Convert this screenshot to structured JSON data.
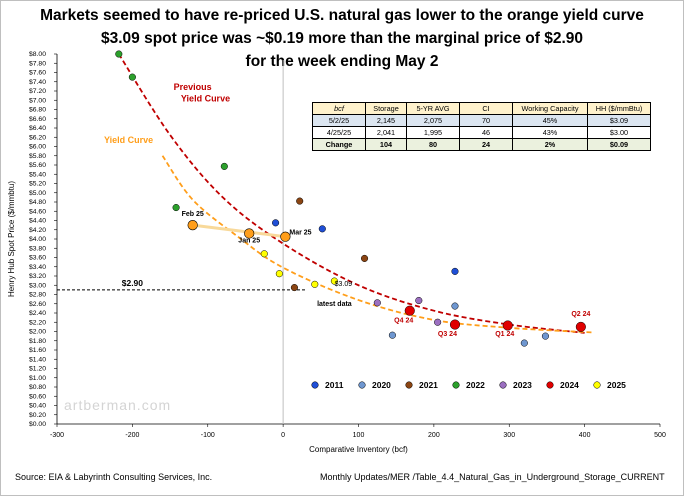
{
  "title_lines": [
    "Markets seemed to have re-priced U.S. natural gas lower to the orange yield curve",
    "$3.09 spot price was ~$0.19 more than the marginal price of $2.90",
    "for the week ending May 2"
  ],
  "table": {
    "headers": [
      "bcf",
      "Storage",
      "5-YR AVG",
      "CI",
      "Working Capacity",
      "HH ($/mmBtu)"
    ],
    "rows": [
      [
        "5/2/25",
        "2,145",
        "2,075",
        "70",
        "45%",
        "$3.09"
      ],
      [
        "4/25/25",
        "2,041",
        "1,995",
        "46",
        "43%",
        "$3.00"
      ],
      [
        "Change",
        "104",
        "80",
        "24",
        "2%",
        "$0.09"
      ]
    ]
  },
  "footer_left": "Source: EIA & Labyrinth Consulting Services, Inc.",
  "footer_right": "Monthly Updates/MER /Table_4.4_Natural_Gas_in_Underground_Storage_CURRENT",
  "watermark": "artberman.com",
  "colors": {
    "y2011": "#1f4fd6",
    "y2020": "#6f97d0",
    "y2021": "#8b4513",
    "y2022": "#2ca02c",
    "y2023": "#9b6fc0",
    "y2024": "#e00000",
    "y2025": "#ffff00",
    "prev_curve": "#c00000",
    "yield_curve": "#ff9e1a"
  },
  "chart_data": {
    "type": "scatter",
    "xlabel": "Comparative Inventory (bcf)",
    "ylabel": "Henry Hub Spot Price ($/mmbtu)",
    "xlim": [
      -300,
      500
    ],
    "ylim": [
      0,
      8
    ],
    "x_ticks": [
      "-300",
      "-200",
      "-100",
      "0",
      "100",
      "200",
      "300",
      "400",
      "500"
    ],
    "y_ticks": [
      "$0.00",
      "$0.20",
      "$0.40",
      "$0.60",
      "$0.80",
      "$1.00",
      "$1.20",
      "$1.40",
      "$1.60",
      "$1.80",
      "$2.00",
      "$2.20",
      "$2.40",
      "$2.60",
      "$2.80",
      "$3.00",
      "$3.20",
      "$3.40",
      "$3.60",
      "$3.80",
      "$4.00",
      "$4.20",
      "$4.40",
      "$4.60",
      "$4.80",
      "$5.00",
      "$5.20",
      "$5.40",
      "$5.60",
      "$5.80",
      "$6.00",
      "$6.20",
      "$6.40",
      "$6.60",
      "$6.80",
      "$7.00",
      "$7.20",
      "$7.40",
      "$7.60",
      "$7.80",
      "$8.00"
    ],
    "series": [
      {
        "name": "2011",
        "color": "#1f4fd6",
        "points": [
          [
            -10,
            4.35
          ],
          [
            52,
            4.22
          ],
          [
            228,
            3.3
          ]
        ]
      },
      {
        "name": "2020",
        "color": "#6f97d0",
        "points": [
          [
            145,
            1.92
          ],
          [
            228,
            2.55
          ],
          [
            320,
            1.75
          ],
          [
            348,
            1.9
          ]
        ]
      },
      {
        "name": "2021",
        "color": "#8b4513",
        "points": [
          [
            22,
            4.82
          ],
          [
            15,
            2.95
          ],
          [
            108,
            3.58
          ]
        ]
      },
      {
        "name": "2022",
        "color": "#2ca02c",
        "points": [
          [
            -218,
            8.0
          ],
          [
            -200,
            7.5
          ],
          [
            -78,
            5.57
          ],
          [
            -142,
            4.68
          ]
        ]
      },
      {
        "name": "2023",
        "color": "#9b6fc0",
        "points": [
          [
            125,
            2.62
          ],
          [
            180,
            2.67
          ],
          [
            205,
            2.2
          ],
          [
            228,
            2.15
          ]
        ]
      },
      {
        "name": "2024",
        "color": "#e00000",
        "points": [
          [
            168,
            2.45
          ],
          [
            228,
            2.15
          ],
          [
            298,
            2.13
          ],
          [
            395,
            2.1
          ]
        ]
      },
      {
        "name": "2025",
        "color": "#ffff00",
        "points": [
          [
            -25,
            3.68
          ],
          [
            -5,
            3.25
          ],
          [
            42,
            3.02
          ],
          [
            68,
            3.09
          ]
        ]
      }
    ],
    "highlighted_points": [
      {
        "label": "Feb 25",
        "x": -120,
        "y": 4.3
      },
      {
        "label": "Jan 25",
        "x": -45,
        "y": 4.12
      },
      {
        "label": "Mar 25",
        "x": 3,
        "y": 4.05
      }
    ],
    "curves": [
      {
        "name": "Previous Yield Curve",
        "style": "dashed",
        "color": "#c00000",
        "points": [
          [
            -218,
            8.0
          ],
          [
            -150,
            6.25
          ],
          [
            -80,
            4.9
          ],
          [
            0,
            3.9
          ],
          [
            100,
            3.0
          ],
          [
            200,
            2.45
          ],
          [
            300,
            2.15
          ],
          [
            400,
            1.97
          ]
        ]
      },
      {
        "name": "Yield Curve",
        "style": "dashed",
        "color": "#ff9e1a",
        "points": [
          [
            -160,
            5.8
          ],
          [
            -120,
            4.85
          ],
          [
            -60,
            4.05
          ],
          [
            0,
            3.38
          ],
          [
            100,
            2.68
          ],
          [
            200,
            2.25
          ],
          [
            300,
            2.08
          ],
          [
            410,
            1.98
          ]
        ]
      }
    ],
    "marginal_price": {
      "label": "$2.90",
      "value": 2.9,
      "x_end": 30
    },
    "annotations": [
      {
        "text": "Previous",
        "x": -120,
        "y": 7.22,
        "color": "#c00000",
        "bold": true
      },
      {
        "text": "Yield Curve",
        "x": -103,
        "y": 6.97,
        "color": "#c00000",
        "bold": true
      },
      {
        "text": "Yield Curve",
        "x": -205,
        "y": 6.08,
        "color": "#ff9e1a",
        "bold": true
      },
      {
        "text": "Feb 25",
        "x": -120,
        "y": 4.5,
        "color": "#000000",
        "bold": true
      },
      {
        "text": "Jan 25",
        "x": -45,
        "y": 3.92,
        "color": "#000000",
        "bold": true
      },
      {
        "text": "Mar 25",
        "x": 23,
        "y": 4.1,
        "color": "#000000",
        "bold": true
      },
      {
        "text": "latest data",
        "x": 68,
        "y": 2.55,
        "color": "#000000",
        "bold": true
      },
      {
        "text": "$3.09",
        "x": 80,
        "y": 2.98,
        "color": "#000000",
        "bold": false
      },
      {
        "text": "Q4 24",
        "x": 160,
        "y": 2.2,
        "color": "#c00000",
        "bold": true
      },
      {
        "text": "Q3 24",
        "x": 218,
        "y": 1.9,
        "color": "#c00000",
        "bold": true
      },
      {
        "text": "Q1 24",
        "x": 294,
        "y": 1.9,
        "color": "#c00000",
        "bold": true
      },
      {
        "text": "Q2 24",
        "x": 395,
        "y": 2.33,
        "color": "#c00000",
        "bold": true
      }
    ],
    "legend": [
      "2011",
      "2020",
      "2021",
      "2022",
      "2023",
      "2024",
      "2025"
    ],
    "legend_position": "bottom-inside"
  }
}
